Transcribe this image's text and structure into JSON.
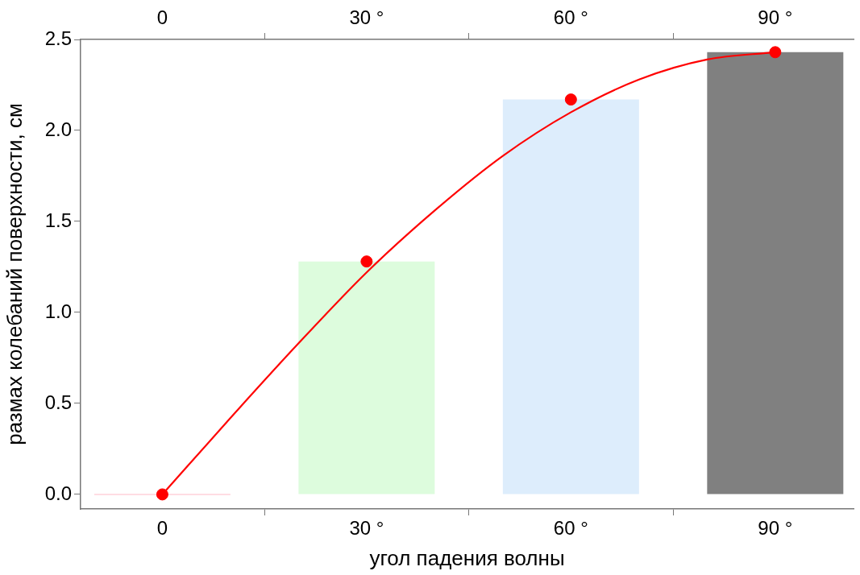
{
  "chart_data": {
    "type": "bar",
    "xlabel": "угол падения волны",
    "ylabel": "размах колебаний поверхности, см",
    "x": [
      0,
      30,
      60,
      90
    ],
    "series": [
      {
        "type": "bar",
        "colors": [
          "#ffdde3",
          "#ddfcdd",
          "#ddedfc",
          "#808080"
        ],
        "values": [
          0,
          1.28,
          2.17,
          2.43
        ]
      },
      {
        "type": "scatter",
        "color": "#ff0000",
        "marker": "circle",
        "values": [
          0,
          1.28,
          2.17,
          2.43
        ]
      },
      {
        "type": "line",
        "color": "#ff0000",
        "marker": "none",
        "x": [
          0,
          10,
          20,
          30,
          40,
          50,
          60,
          70,
          80,
          90
        ],
        "values": [
          0,
          0.42,
          0.83,
          1.22,
          1.56,
          1.86,
          2.1,
          2.28,
          2.39,
          2.43
        ]
      }
    ],
    "xlim": [
      -12,
      101.5
    ],
    "xticks": [
      {
        "value": 0,
        "label": "0"
      },
      {
        "value": 30,
        "label": "30 °"
      },
      {
        "value": 60,
        "label": "60 °"
      },
      {
        "value": 90,
        "label": "90 °"
      }
    ],
    "x2lim": [
      -12,
      101.5
    ],
    "x2ticks": [
      {
        "value": 0,
        "label": "0"
      },
      {
        "value": 30,
        "label": "30 °"
      },
      {
        "value": 60,
        "label": "60 °"
      },
      {
        "value": 90,
        "label": "90 °"
      }
    ],
    "ylim": [
      -0.08,
      2.5
    ],
    "yticks": [
      {
        "value": 0,
        "label": "0.0"
      },
      {
        "value": 0.5,
        "label": "0.5"
      },
      {
        "value": 1,
        "label": "1.0"
      },
      {
        "value": 1.5,
        "label": "1.5"
      },
      {
        "value": 2,
        "label": "2.0"
      },
      {
        "value": 2.5,
        "label": "2.5"
      }
    ],
    "grid": false,
    "legend": false
  }
}
